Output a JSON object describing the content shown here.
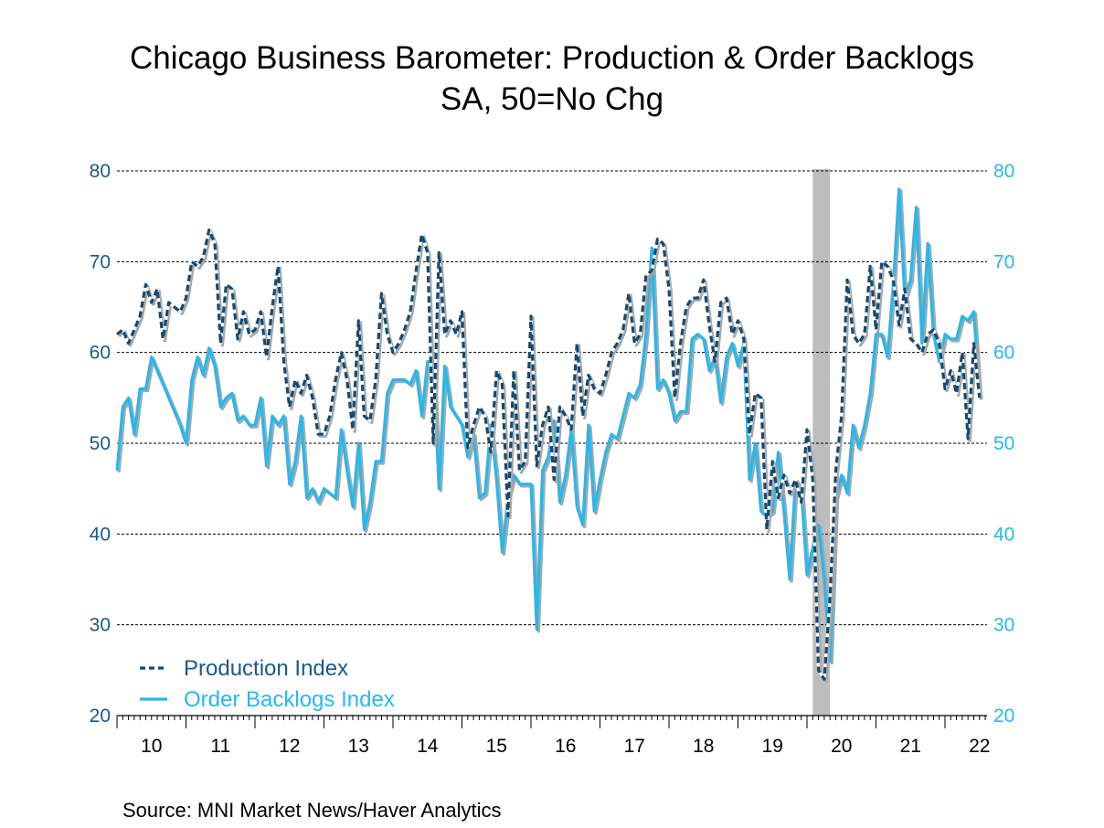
{
  "chart_data": {
    "type": "line",
    "title": "Chicago Business Barometer: Production & Order Backlogs",
    "subtitle": "SA, 50=No Chg",
    "source": "Source:  MNI Market News/Haver Analytics",
    "x_start": "2010-01",
    "frequency": "monthly",
    "x_tick_labels": [
      "10",
      "11",
      "12",
      "13",
      "14",
      "15",
      "16",
      "17",
      "18",
      "19",
      "20",
      "21",
      "22"
    ],
    "y_ticks": [
      20,
      30,
      40,
      50,
      60,
      70,
      80
    ],
    "ylim": [
      20,
      80
    ],
    "grid": true,
    "legend_placement": "bottom-left",
    "recession_shading": {
      "start": "2020-02",
      "end": "2020-04",
      "color": "#bdbdbd"
    },
    "series": [
      {
        "name": "Production Index",
        "style": "dashed",
        "color": "#154a70",
        "values": [
          62,
          62.5,
          61,
          62.5,
          64,
          67.5,
          65.5,
          67,
          61.5,
          65.5,
          65,
          64.5,
          66,
          70,
          69.5,
          70.5,
          73.5,
          72,
          61,
          67.5,
          67,
          61.5,
          64.5,
          62,
          62.5,
          64.5,
          59.5,
          65,
          69.5,
          59,
          54,
          57,
          55.5,
          57.5,
          55,
          51,
          51,
          53,
          57,
          60,
          57,
          51.5,
          63.5,
          53,
          52.5,
          57,
          66.5,
          62,
          60,
          61,
          62.5,
          64.5,
          69,
          73,
          71,
          50,
          71,
          62,
          63.5,
          62,
          64.5,
          49.5,
          52,
          54,
          53,
          49,
          58,
          56.5,
          42,
          58,
          47,
          48,
          64,
          47.5,
          52,
          54,
          46,
          54,
          53,
          51.5,
          61,
          53,
          57.5,
          56,
          55.5,
          57.5,
          60,
          61,
          62.5,
          66.5,
          61,
          62,
          68.5,
          69,
          72.5,
          72,
          67,
          55,
          61,
          65,
          66,
          66,
          68,
          63,
          59,
          65.5,
          66,
          62,
          63.5,
          61.5,
          51,
          55.5,
          55,
          40.5,
          48,
          44,
          46.5,
          44.5,
          46,
          43.5,
          51.5,
          46,
          25,
          24,
          33,
          47,
          53,
          68,
          62,
          61,
          62,
          69.5,
          62.5,
          70,
          69.5,
          68,
          63,
          67,
          61.5,
          61,
          60,
          62,
          62.5,
          61,
          56,
          58,
          55.5,
          60,
          50.5,
          61,
          55
        ]
      },
      {
        "name": "Order Backlogs Index",
        "style": "solid",
        "color": "#29b8ea",
        "values": [
          47,
          54,
          55,
          51,
          56,
          56,
          59.5,
          58,
          56.5,
          55,
          53.5,
          52,
          50,
          57,
          59.5,
          57.5,
          60.5,
          58.5,
          54,
          55,
          55.5,
          52.5,
          53,
          52,
          52,
          55,
          47.5,
          53,
          52,
          53,
          45.5,
          48,
          53,
          44,
          45,
          43.5,
          45,
          44.5,
          44,
          51.5,
          47,
          43,
          50,
          40.5,
          43.5,
          48,
          48,
          55.5,
          57,
          57,
          57,
          56.5,
          58,
          53,
          59,
          59,
          45,
          58.5,
          54,
          53,
          52,
          48.5,
          51,
          44,
          44.5,
          52,
          46,
          38,
          44,
          46.5,
          45.5,
          45.5,
          45.5,
          29.5,
          47,
          48.5,
          52.5,
          43.5,
          46.5,
          51.5,
          43,
          41,
          52,
          42.5,
          46,
          49,
          51,
          50.5,
          53,
          55.5,
          55,
          56.5,
          62,
          71.5,
          56,
          57,
          55.5,
          52.5,
          53.5,
          53.5,
          61.5,
          62,
          61.5,
          58,
          59.5,
          54.5,
          59.5,
          61,
          58.5,
          61,
          46,
          50,
          42.5,
          42,
          42.5,
          49,
          42.5,
          35,
          46,
          45,
          35.5,
          38.5,
          41,
          35,
          26,
          44,
          46.5,
          44.5,
          52,
          49.5,
          52,
          55.5,
          62,
          62,
          59.5,
          67.5,
          78,
          66,
          68,
          76,
          61,
          72,
          62,
          59,
          62,
          61.5,
          61.5,
          64,
          63.5,
          64.5,
          55
        ]
      }
    ],
    "left_axis_color": "#1b5a85",
    "right_axis_color": "#29b8ea"
  }
}
